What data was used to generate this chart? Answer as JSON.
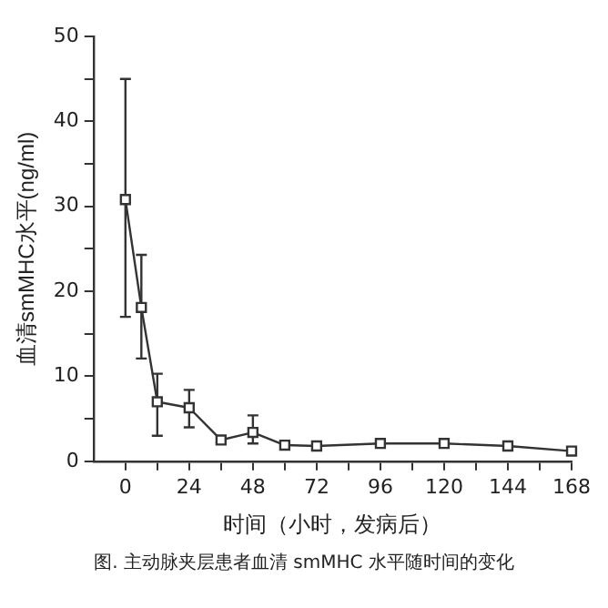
{
  "chart_data": {
    "type": "line",
    "xlabel": "时间（小时，发病后）",
    "ylabel": "血清smMHC水平(ng/ml)",
    "x": [
      0,
      6,
      12,
      24,
      36,
      48,
      60,
      72,
      96,
      120,
      144,
      168
    ],
    "series": [
      {
        "color": "#333333",
        "values": [
          30.8,
          18.1,
          7.0,
          6.3,
          2.5,
          3.4,
          1.9,
          1.8,
          2.1,
          2.1,
          1.8,
          1.2
        ],
        "errors": [
          [
            17,
            45
          ],
          [
            12.1,
            24.3
          ],
          [
            3.0,
            10.3
          ],
          [
            4.0,
            8.4
          ],
          null,
          [
            2.1,
            5.4
          ],
          null,
          null,
          null,
          null,
          null,
          null
        ]
      }
    ],
    "xlim": [
      -12,
      168
    ],
    "ylim": [
      0,
      50
    ],
    "xticks": [
      0,
      {
        "value": 12,
        "label": null
      },
      24,
      {
        "value": 36,
        "label": null
      },
      48,
      {
        "value": 60,
        "label": null
      },
      72,
      {
        "value": 84,
        "label": null
      },
      96,
      {
        "value": 108,
        "label": null
      },
      120,
      {
        "value": 132,
        "label": null
      },
      144,
      {
        "value": 156,
        "label": null
      },
      168
    ],
    "yticks": [
      0,
      {
        "value": 5,
        "label": null
      },
      10,
      {
        "value": 15,
        "label": null
      },
      20,
      {
        "value": 25,
        "label": null
      },
      30,
      {
        "value": 35,
        "label": null
      },
      40,
      {
        "value": 45,
        "label": null
      },
      50
    ],
    "grid": false,
    "legend": false,
    "marker": "square",
    "line_style": "solid",
    "annotations": [
      "图. 主动脉夹层患者血清 smMHC 水平随时间的变化"
    ]
  }
}
